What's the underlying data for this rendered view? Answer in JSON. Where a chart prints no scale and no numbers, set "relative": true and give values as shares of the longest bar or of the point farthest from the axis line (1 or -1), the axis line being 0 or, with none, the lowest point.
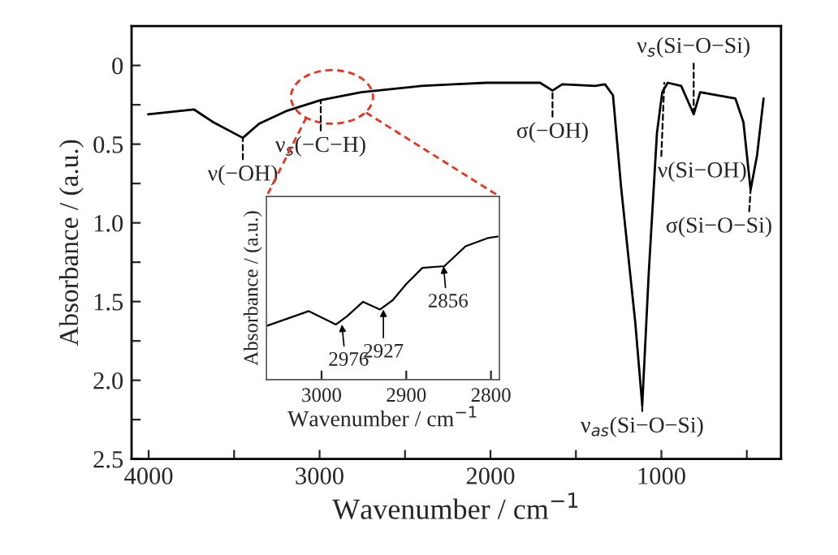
{
  "chart_data": [
    {
      "type": "line",
      "xlabel": "Wavenumber / cm$^{−1}$",
      "ylabel": "Absorbance / (a.u.)",
      "x": [
        4003,
        3734,
        3623,
        3449,
        3354,
        3196,
        2993,
        2755,
        2404,
        2214,
        2024,
        1710,
        1637,
        1580,
        1387,
        1330,
        1283,
        1236,
        1153,
        1112,
        1074,
        1026,
        995,
        963,
        884,
        811,
        773,
        567,
        520,
        478,
        440,
        402
      ],
      "series": [
        {
          "color": "#000000",
          "values": [
            0.31,
            0.28,
            0.36,
            0.46,
            0.37,
            0.29,
            0.22,
            0.17,
            0.13,
            0.12,
            0.11,
            0.11,
            0.16,
            0.12,
            0.13,
            0.12,
            0.19,
            0.77,
            1.63,
            2.16,
            1.32,
            0.43,
            0.17,
            0.11,
            0.13,
            0.31,
            0.17,
            0.21,
            0.36,
            0.79,
            0.57,
            0.21
          ]
        }
      ],
      "xlim": [
        4100,
        300
      ],
      "xticks": [
        4000,
        {
          "value": 3500,
          "label": null
        },
        3000,
        {
          "value": 2500,
          "label": null
        },
        2000,
        {
          "value": 1500,
          "label": null
        },
        1000,
        {
          "value": 500,
          "label": null
        }
      ],
      "ylim": [
        2.5,
        -0.25
      ],
      "yticks": [
        {
          "value": 0,
          "label": "0"
        },
        {
          "value": 0.25,
          "label": null
        },
        0.5,
        {
          "value": 0.75,
          "label": null
        },
        {
          "value": 1,
          "label": "1.0"
        },
        {
          "value": 1.25,
          "label": null
        },
        1.5,
        {
          "value": 1.75,
          "label": null
        },
        {
          "value": 2,
          "label": "2.0"
        },
        {
          "value": 2.25,
          "label": null
        },
        2.5
      ],
      "annotations": [
        {
          "text": "ν(−OH)",
          "x": 3449,
          "y": 0.46
        },
        {
          "text": "ν$_{s}$(−C−H)",
          "x": 2993,
          "y": 0.22
        },
        {
          "text": "σ(−OH)",
          "x": 1637,
          "y": 0.16
        },
        {
          "text": "ν$_{s}$(Si−O−Si)",
          "x": 811,
          "y": 0.31
        },
        {
          "text": "ν(Si−OH)",
          "x": 983,
          "y": 0.11
        },
        {
          "text": "σ(Si−O−Si)",
          "x": 478,
          "y": 0.79
        },
        {
          "text": "ν$_{as}$(Si−O−Si)",
          "x": 1112,
          "y": 2.16
        }
      ],
      "legend": false,
      "grid": false
    },
    {
      "type": "line",
      "xlabel": "Wavenumber / cm$^{−1}$",
      "ylabel": "Absorbance / (a.u.)",
      "relative": true,
      "x": [
        3064,
        3015,
        2983,
        2970,
        2951,
        2931,
        2916,
        2900,
        2881,
        2855,
        2830,
        2804,
        2792
      ],
      "series": [
        {
          "color": "#000000",
          "values": [
            0.377,
            0.479,
            0.385,
            0.442,
            0.544,
            0.49,
            0.555,
            0.668,
            0.781,
            0.793,
            0.932,
            0.989,
            1.0
          ]
        }
      ],
      "xlim": [
        3065,
        2790
      ],
      "xticks": [
        3000,
        2900,
        2800
      ],
      "tick_labels": "x",
      "annotations": [
        {
          "text": "2976",
          "x": 2976,
          "y": 0.385
        },
        {
          "text": "2927",
          "x": 2927,
          "y": 0.49
        },
        {
          "text": "2856",
          "x": 2856,
          "y": 0.793
        }
      ],
      "legend": false,
      "grid": false
    }
  ]
}
